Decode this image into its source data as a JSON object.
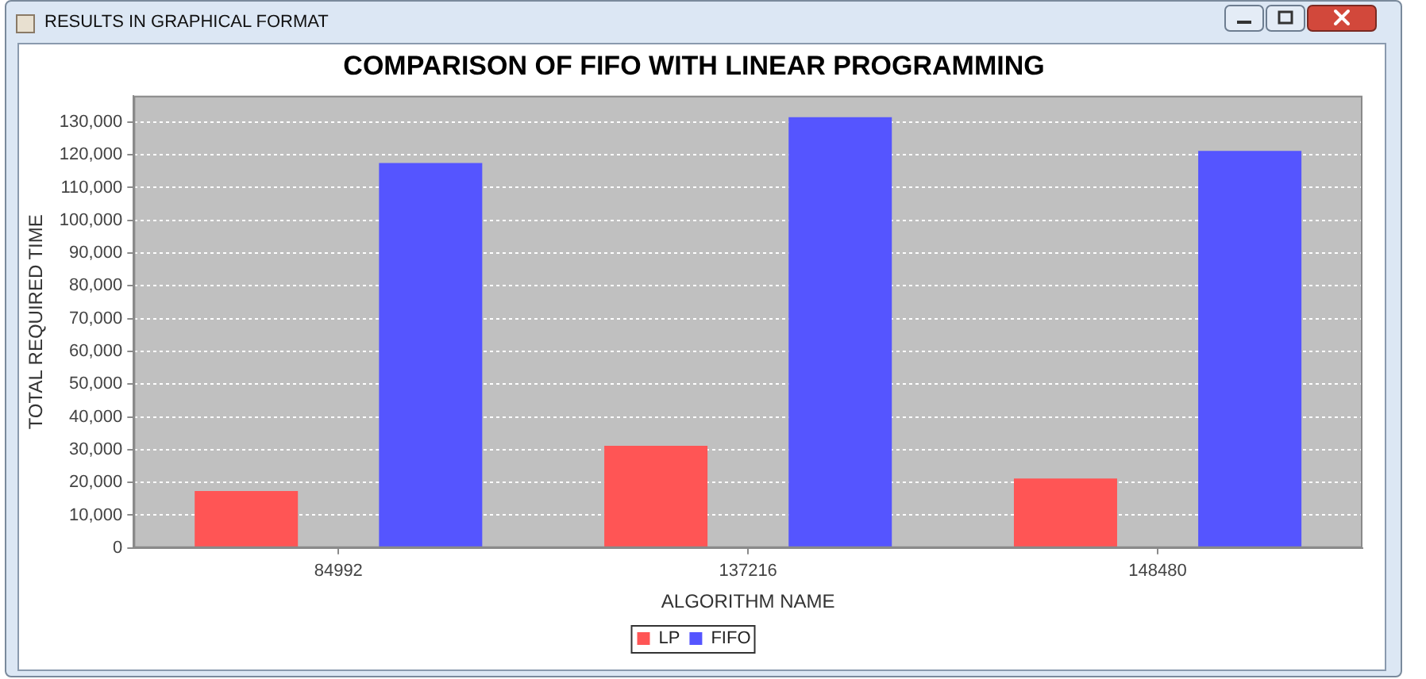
{
  "chart_data": {
    "type": "bar",
    "title": "COMPARISON OF FIFO WITH LINEAR PROGRAMMING",
    "xlabel": "ALGORITHM NAME",
    "ylabel": "TOTAL REQUIRED TIME",
    "annotations": [
      "RESULTS IN GRAPHICAL FORMAT"
    ],
    "categories": [
      "84992",
      "137216",
      "148480"
    ],
    "series": [
      {
        "name": "LP",
        "color": "#ff5555",
        "values": [
          17400,
          31200,
          21200
        ]
      },
      {
        "name": "FIFO",
        "color": "#5555ff",
        "values": [
          117500,
          131500,
          121200
        ]
      }
    ],
    "ylim": [
      0,
      138000
    ],
    "yticks": [
      0,
      {
        "value": 10000,
        "label": "10,000"
      },
      {
        "value": 20000,
        "label": "20,000"
      },
      {
        "value": 30000,
        "label": "30,000"
      },
      {
        "value": 40000,
        "label": "40,000"
      },
      {
        "value": 50000,
        "label": "50,000"
      },
      {
        "value": 60000,
        "label": "60,000"
      },
      {
        "value": 70000,
        "label": "70,000"
      },
      {
        "value": 80000,
        "label": "80,000"
      },
      {
        "value": 90000,
        "label": "90,000"
      },
      {
        "value": 100000,
        "label": "100,000"
      },
      {
        "value": 110000,
        "label": "110,000"
      },
      {
        "value": 120000,
        "label": "120,000"
      },
      {
        "value": 130000,
        "label": "130,000"
      }
    ],
    "grid": "y",
    "legend": "bottom"
  }
}
